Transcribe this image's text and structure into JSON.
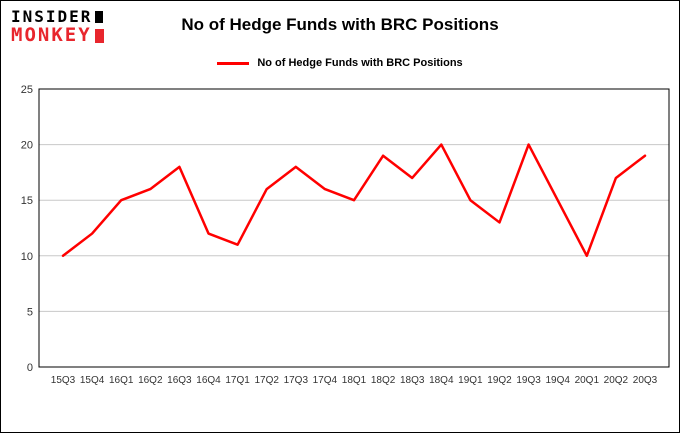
{
  "logo": {
    "line1": "INSIDER",
    "line2": "MONKEY",
    "brand_red": "#e8262d"
  },
  "header": {
    "title": "No of Hedge Funds with BRC Positions"
  },
  "legend": {
    "label": "No of Hedge Funds with BRC Positions",
    "color": "#ff0000"
  },
  "chart_data": {
    "type": "line",
    "title": "No of Hedge Funds with BRC Positions",
    "categories": [
      "15Q3",
      "15Q4",
      "16Q1",
      "16Q2",
      "16Q3",
      "16Q4",
      "17Q1",
      "17Q2",
      "17Q3",
      "17Q4",
      "18Q1",
      "18Q2",
      "18Q3",
      "18Q4",
      "19Q1",
      "19Q2",
      "19Q3",
      "19Q4",
      "20Q1",
      "20Q2",
      "20Q3"
    ],
    "series": [
      {
        "name": "No of Hedge Funds with BRC Positions",
        "color": "#ff0000",
        "values": [
          10,
          12,
          15,
          16,
          18,
          12,
          11,
          16,
          18,
          16,
          15,
          19,
          17,
          20,
          15,
          13,
          20,
          15,
          10,
          17,
          19
        ]
      }
    ],
    "xlabel": "",
    "ylabel": "",
    "ylim": [
      0,
      25
    ],
    "yticks": [
      0,
      5,
      10,
      15,
      20,
      25
    ],
    "grid": true,
    "grid_color": "#c8c8c8",
    "legend_position": "top"
  }
}
